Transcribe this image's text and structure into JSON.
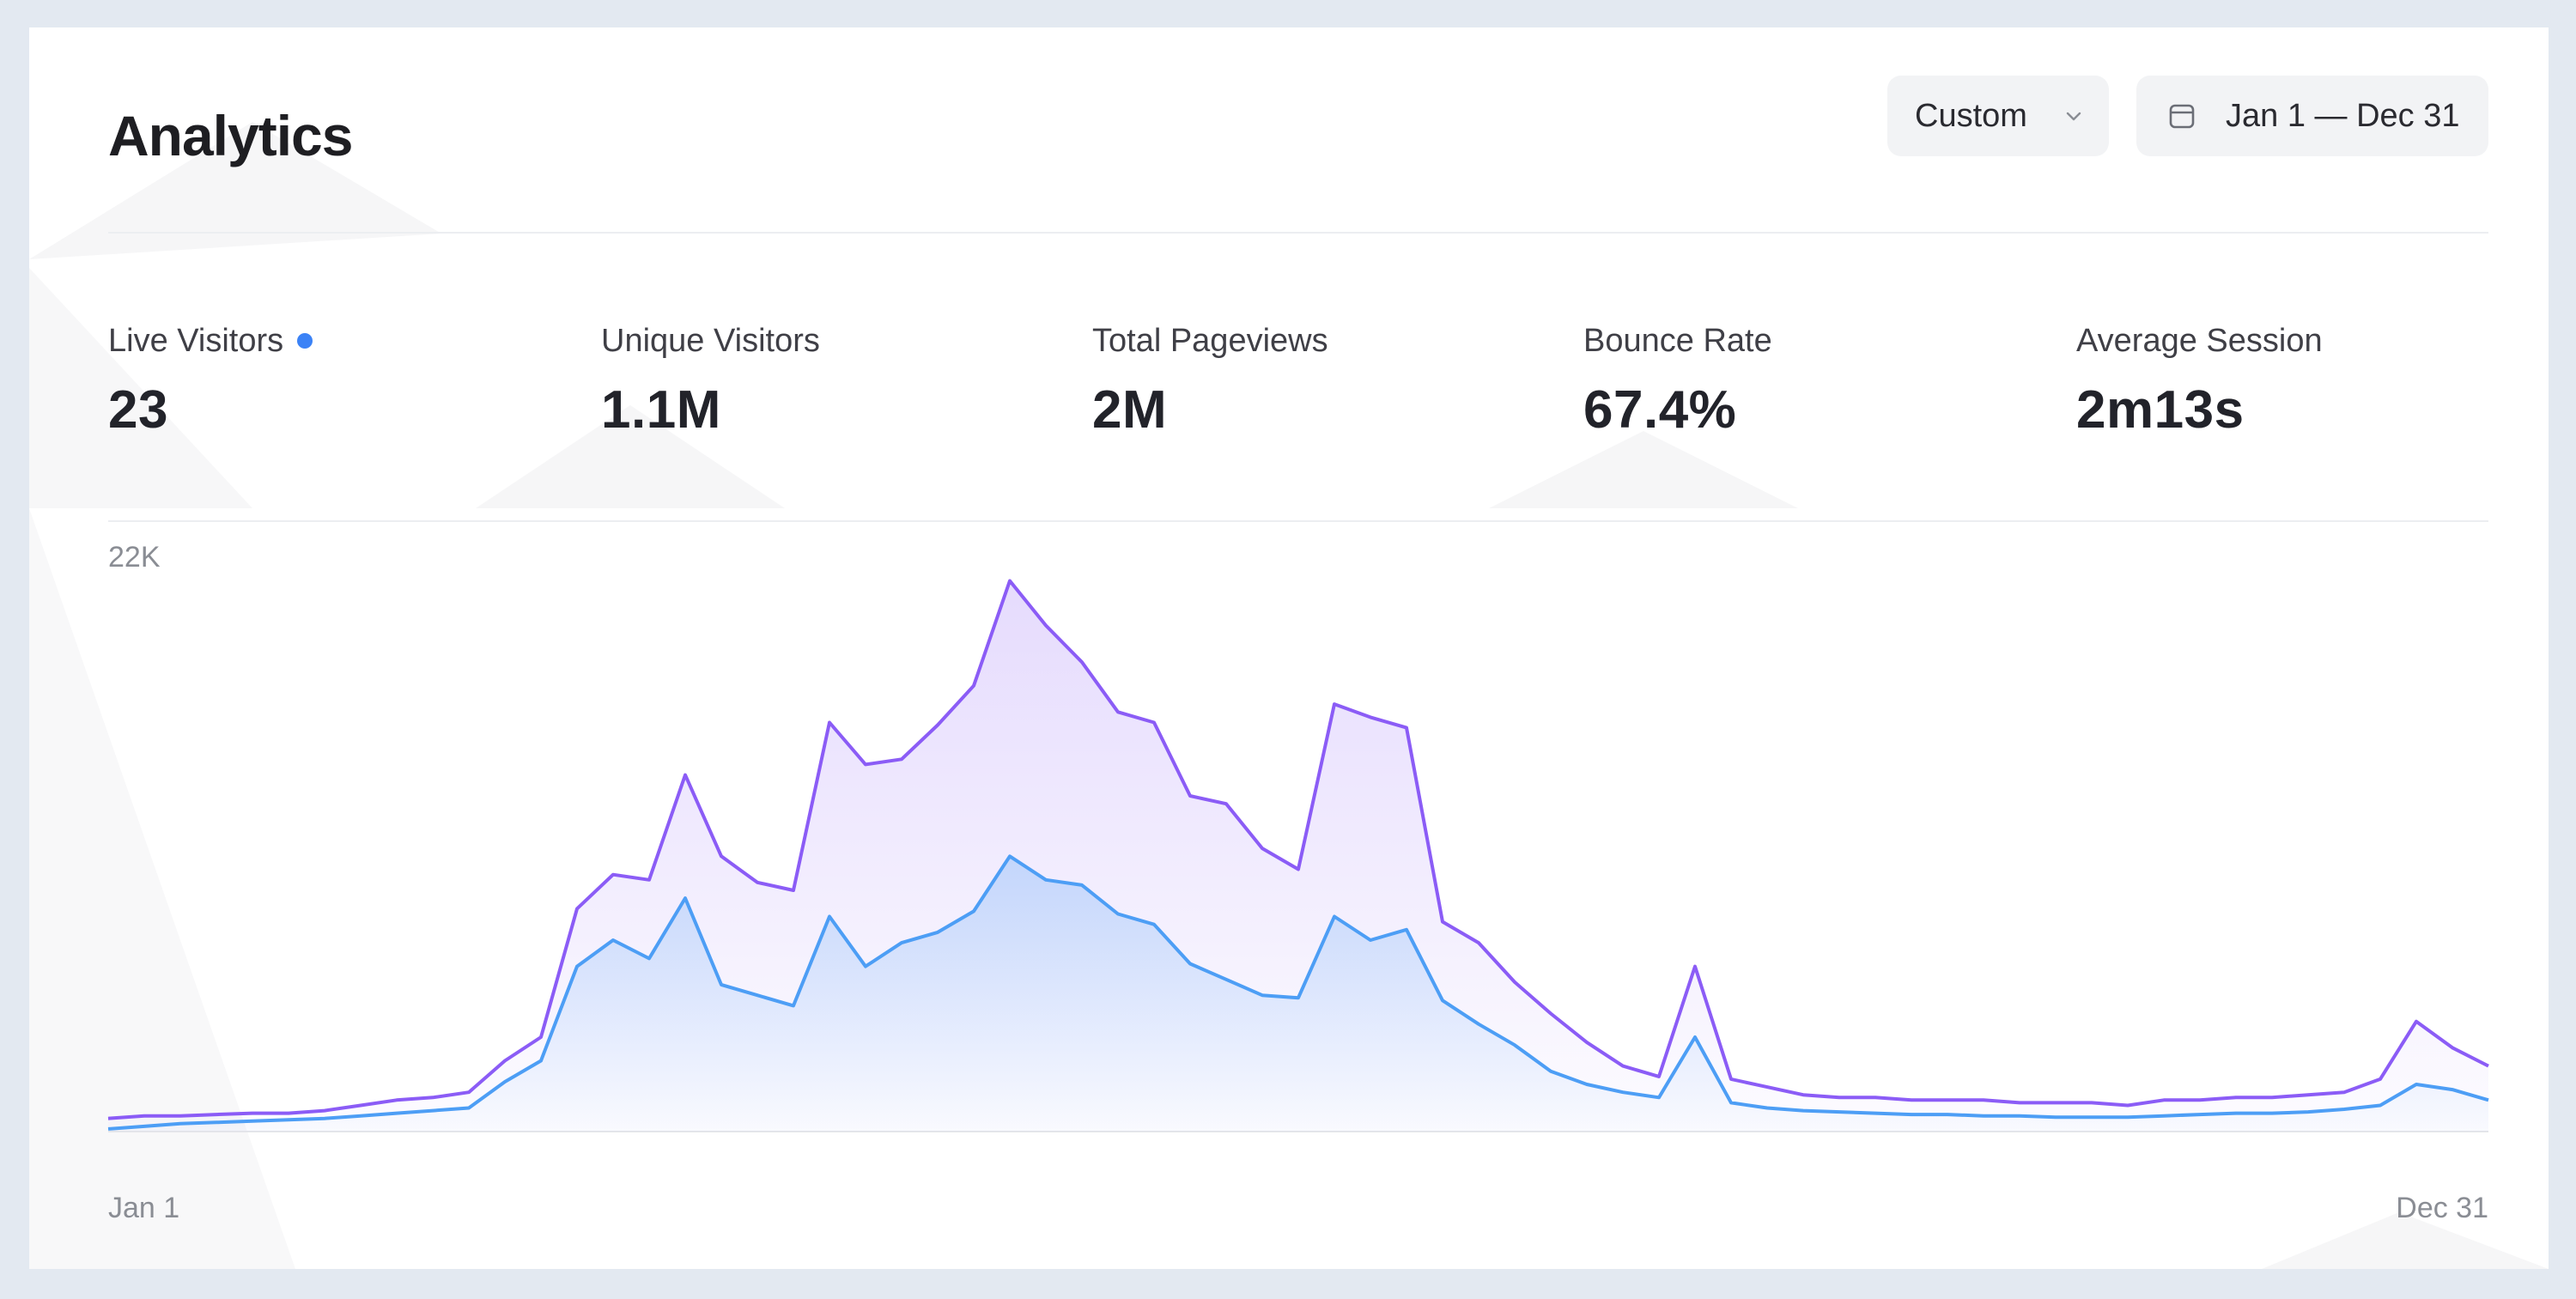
{
  "header": {
    "title": "Analytics",
    "range_select": {
      "value": "Custom"
    },
    "date_range": {
      "label": "Jan 1 — Dec 31"
    }
  },
  "metrics": [
    {
      "label": "Live Visitors",
      "value": "23",
      "live": true
    },
    {
      "label": "Unique Visitors",
      "value": "1.1M"
    },
    {
      "label": "Total Pageviews",
      "value": "2M"
    },
    {
      "label": "Bounce Rate",
      "value": "67.4%"
    },
    {
      "label": "Average Session",
      "value": "2m13s"
    }
  ],
  "colors": {
    "pageviews": "#8b5cf6",
    "visitors": "#4d9ef5",
    "live_dot": "#3b82f6"
  },
  "icons": {
    "select": "chevron-down-icon",
    "date_range": "calendar-icon"
  },
  "chart_data": {
    "type": "area",
    "x_start_label": "Jan 1",
    "x_end_label": "Dec 31",
    "y_max_label": "22K",
    "ylim": [
      0,
      22000
    ],
    "grid": false,
    "legend": "none",
    "series": [
      {
        "color": "#8b5cf6",
        "values": [
          500,
          600,
          600,
          650,
          700,
          700,
          800,
          1000,
          1200,
          1300,
          1500,
          2700,
          3600,
          8500,
          9800,
          9600,
          13600,
          10500,
          9500,
          9200,
          15600,
          14000,
          14200,
          15500,
          17000,
          21000,
          19300,
          17900,
          16000,
          15600,
          12800,
          12500,
          10800,
          10000,
          16300,
          15800,
          15400,
          8000,
          7200,
          5700,
          4500,
          3400,
          2500,
          2100,
          6300,
          2000,
          1700,
          1400,
          1300,
          1300,
          1200,
          1200,
          1200,
          1100,
          1100,
          1100,
          1000,
          1200,
          1200,
          1300,
          1300,
          1400,
          1500,
          2000,
          4200,
          3200,
          2500
        ]
      },
      {
        "color": "#4d9ef5",
        "values": [
          100,
          200,
          300,
          350,
          400,
          450,
          500,
          600,
          700,
          800,
          900,
          1900,
          2700,
          6300,
          7300,
          6600,
          8900,
          5600,
          5200,
          4800,
          8200,
          6300,
          7200,
          7600,
          8400,
          10500,
          9600,
          9400,
          8300,
          7900,
          6400,
          5800,
          5200,
          5100,
          8200,
          7300,
          7700,
          5000,
          4100,
          3300,
          2300,
          1800,
          1500,
          1300,
          3600,
          1100,
          900,
          800,
          750,
          700,
          650,
          650,
          600,
          600,
          550,
          550,
          550,
          600,
          650,
          700,
          700,
          750,
          850,
          1000,
          1800,
          1600,
          1200
        ]
      }
    ]
  }
}
